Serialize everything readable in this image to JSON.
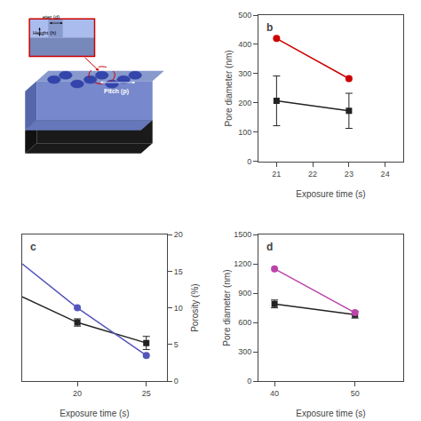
{
  "chart_data": [
    {
      "type": "schematic",
      "annotations": [
        "Pitch (p)",
        "eter (d)",
        "Height (h)"
      ],
      "colors": [
        "#1a1a1a",
        "#111111",
        "#7788cc",
        "#5566aa",
        "#6677bb",
        "#8899cc",
        "#3344aa",
        "#cc0000",
        "#ffffff",
        "#aabbee",
        "#7788bb",
        "#000000"
      ]
    },
    {
      "type": "line",
      "title": "b",
      "xlabel": "Exposure time (s)",
      "ylabel": "Pore diameter (nm)",
      "x": [
        21,
        23
      ],
      "xlim": [
        20.5,
        24.5
      ],
      "xticks": [
        21,
        22,
        23,
        24
      ],
      "ylim": [
        0,
        500
      ],
      "yticks": [
        0,
        100,
        200,
        300,
        400,
        500
      ],
      "grid": false,
      "series": [
        {
          "color": "#222222",
          "marker": "square",
          "values": [
            207,
            173
          ],
          "errors": [
            85,
            60
          ]
        },
        {
          "color": "#cc0000",
          "marker": "circle",
          "values": [
            420,
            283
          ]
        }
      ]
    },
    {
      "type": "line",
      "title": "c",
      "xlabel": "Exposure time (s)",
      "y2label": "Porosity (%)",
      "xlim": [
        16,
        26.5
      ],
      "xticks": [
        20,
        25
      ],
      "ylim": [
        0,
        20
      ],
      "yticks": [],
      "y2lim": [
        0,
        20
      ],
      "y2ticks": [
        0,
        5,
        10,
        15,
        20
      ],
      "grid": false,
      "series": [
        {
          "type": "line",
          "color": "#222222",
          "x": [
            16,
            20,
            25
          ],
          "values": [
            11.5,
            8.0,
            5.2
          ]
        },
        {
          "type": "scatter",
          "color": "#222222",
          "marker": "square",
          "x": [
            20,
            25
          ],
          "values": [
            8.0,
            5.2
          ],
          "errors": [
            0.5,
            0.9
          ]
        },
        {
          "type": "line",
          "color": "#5555bb",
          "axis": "y2",
          "x": [
            16,
            20,
            25
          ],
          "values": [
            16.0,
            10.0,
            3.5
          ]
        },
        {
          "type": "scatter",
          "color": "#5555bb",
          "marker": "circle",
          "axis": "y2",
          "x": [
            20,
            25
          ],
          "values": [
            10.0,
            3.5
          ]
        }
      ]
    },
    {
      "type": "line",
      "title": "d",
      "xlabel": "Exposure time (s)",
      "ylabel": "Pore diameter (nm)",
      "x": [
        40,
        50
      ],
      "xlim": [
        38,
        56
      ],
      "xticks": [
        40,
        50
      ],
      "ylim": [
        0,
        1500
      ],
      "yticks": [
        0,
        300,
        600,
        900,
        1200,
        1500
      ],
      "grid": false,
      "series": [
        {
          "color": "#222222",
          "marker": "square",
          "values": [
            790,
            680
          ],
          "errors": [
            40,
            35
          ]
        },
        {
          "color": "#bb44aa",
          "marker": "circle",
          "values": [
            1150,
            700
          ]
        }
      ]
    }
  ]
}
